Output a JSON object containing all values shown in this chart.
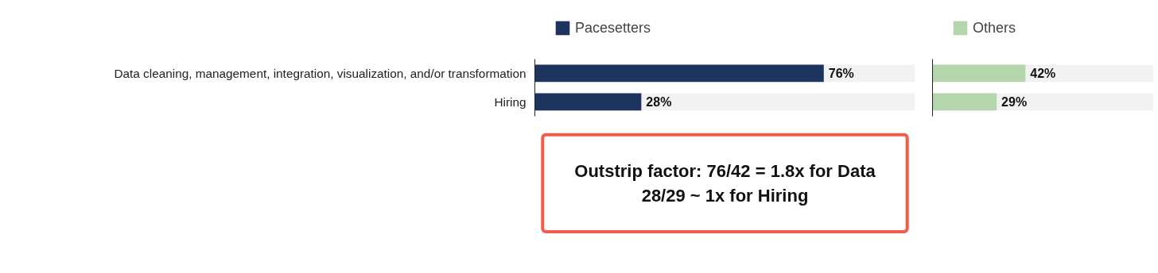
{
  "chart_data": [
    {
      "type": "bar",
      "orientation": "horizontal",
      "categories": [
        "Data cleaning, management, integration, visualization, and/or transformation",
        "Hiring"
      ],
      "series": [
        {
          "name": "Pacesetters",
          "color": "#1d355e",
          "values": [
            76,
            28
          ],
          "value_labels": [
            "76%",
            "28%"
          ]
        }
      ],
      "xlim": [
        0,
        100
      ],
      "legend": "top left",
      "tick_labels": "y",
      "annotations": [
        "Outstrip factor: 76/42 = 1.8x for Data\n28/29 ~ 1x for Hiring"
      ]
    },
    {
      "type": "bar",
      "orientation": "horizontal",
      "categories": [
        null,
        null
      ],
      "series": [
        {
          "name": "Others",
          "color": "#b5d6ad",
          "values": [
            42,
            29
          ],
          "value_labels": [
            "42%",
            "29%"
          ]
        }
      ],
      "xlim": [
        0,
        100
      ],
      "legend": "top left",
      "tick_labels": false
    }
  ]
}
